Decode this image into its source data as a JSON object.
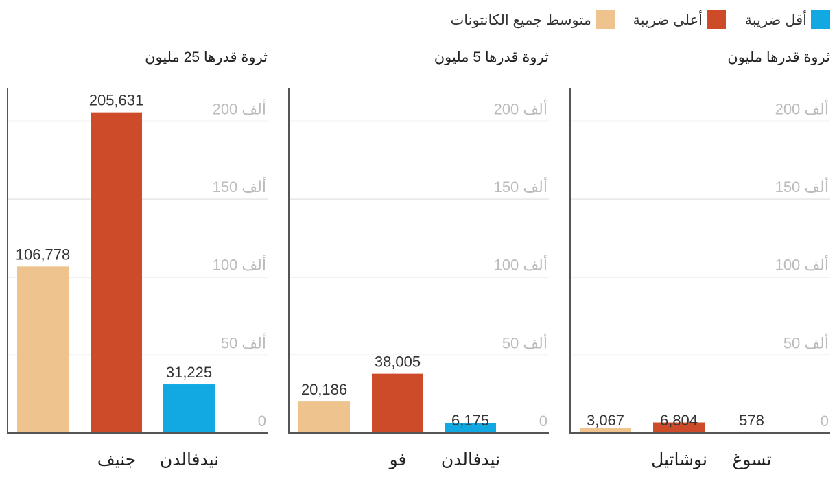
{
  "colors": {
    "lowest": "#12a9e3",
    "highest": "#cd4b28",
    "average": "#efc38d",
    "grid": "#e6e6e6",
    "axis": "#555555",
    "tick": "#bbbbbb"
  },
  "legend": [
    {
      "key": "lowest",
      "label": "أقل ضريبة"
    },
    {
      "key": "highest",
      "label": "أعلى ضريبة"
    },
    {
      "key": "average",
      "label": "متوسط جميع الكانتونات"
    }
  ],
  "chart_data": [
    {
      "type": "bar",
      "title": "ثروة قدرها مليون",
      "ylim": [
        0,
        220000
      ],
      "yticks": [
        0,
        50000,
        100000,
        150000,
        200000
      ],
      "ytick_labels": [
        "0",
        "50 ألف",
        "100 ألف",
        "150 ألف",
        "200 ألف"
      ],
      "bars": [
        {
          "series": "lowest",
          "value": 578,
          "label": "578",
          "category": "تسوغ"
        },
        {
          "series": "highest",
          "value": 6804,
          "label": "6,804",
          "category": "نوشاتيل"
        },
        {
          "series": "average",
          "value": 3067,
          "label": "3,067",
          "category": ""
        }
      ]
    },
    {
      "type": "bar",
      "title": "ثروة قدرها 5 مليون",
      "ylim": [
        0,
        220000
      ],
      "yticks": [
        0,
        50000,
        100000,
        150000,
        200000
      ],
      "ytick_labels": [
        "0",
        "50 ألف",
        "100 ألف",
        "150 ألف",
        "200 ألف"
      ],
      "bars": [
        {
          "series": "lowest",
          "value": 6175,
          "label": "6,175",
          "category": "نيدفالدن"
        },
        {
          "series": "highest",
          "value": 38005,
          "label": "38,005",
          "category": "فو"
        },
        {
          "series": "average",
          "value": 20186,
          "label": "20,186",
          "category": ""
        }
      ]
    },
    {
      "type": "bar",
      "title": "ثروة قدرها 25 مليون",
      "ylim": [
        0,
        220000
      ],
      "yticks": [
        0,
        50000,
        100000,
        150000,
        200000
      ],
      "ytick_labels": [
        "0",
        "50 ألف",
        "100 ألف",
        "150 ألف",
        "200 ألف"
      ],
      "bars": [
        {
          "series": "lowest",
          "value": 31225,
          "label": "31,225",
          "category": "نيدفالدن"
        },
        {
          "series": "highest",
          "value": 205631,
          "label": "205,631",
          "category": "جنيف"
        },
        {
          "series": "average",
          "value": 106778,
          "label": "106,778",
          "category": ""
        }
      ]
    }
  ]
}
